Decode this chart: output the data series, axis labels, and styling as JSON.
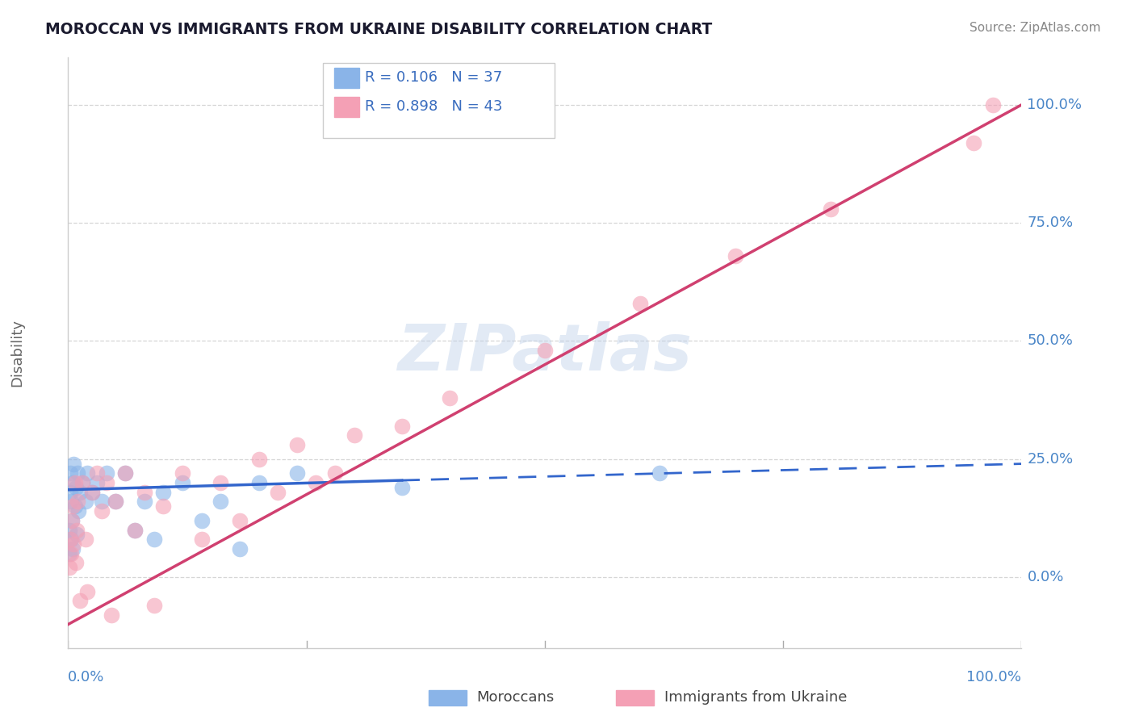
{
  "title": "MOROCCAN VS IMMIGRANTS FROM UKRAINE DISABILITY CORRELATION CHART",
  "source": "Source: ZipAtlas.com",
  "ylabel": "Disability",
  "watermark": "ZIPatlas",
  "legend_r1": "R = 0.106",
  "legend_n1": "N = 37",
  "legend_r2": "R = 0.898",
  "legend_n2": "N = 43",
  "ytick_labels": [
    "0.0%",
    "25.0%",
    "50.0%",
    "75.0%",
    "100.0%"
  ],
  "ytick_values": [
    0.0,
    25.0,
    50.0,
    75.0,
    100.0
  ],
  "xtick_positions": [
    0.0,
    25.0,
    50.0,
    75.0,
    100.0
  ],
  "xlim": [
    0.0,
    100.0
  ],
  "ylim": [
    -15.0,
    110.0
  ],
  "moroccan_color": "#8ab4e8",
  "ukraine_color": "#f4a0b5",
  "moroccan_line_color": "#3366cc",
  "ukraine_line_color": "#d04070",
  "moroccan_scatter_x": [
    0.1,
    0.15,
    0.2,
    0.25,
    0.3,
    0.35,
    0.4,
    0.5,
    0.5,
    0.6,
    0.7,
    0.8,
    0.9,
    1.0,
    1.1,
    1.2,
    1.5,
    1.8,
    2.0,
    2.5,
    3.0,
    3.5,
    4.0,
    5.0,
    6.0,
    7.0,
    8.0,
    9.0,
    10.0,
    12.0,
    14.0,
    16.0,
    18.0,
    20.0,
    24.0,
    35.0,
    62.0
  ],
  "moroccan_scatter_y": [
    5.0,
    10.0,
    18.0,
    22.0,
    16.0,
    8.0,
    12.0,
    20.0,
    6.0,
    24.0,
    15.0,
    19.0,
    9.0,
    22.0,
    14.0,
    18.0,
    20.0,
    16.0,
    22.0,
    18.0,
    20.0,
    16.0,
    22.0,
    16.0,
    22.0,
    10.0,
    16.0,
    8.0,
    18.0,
    20.0,
    12.0,
    16.0,
    6.0,
    20.0,
    22.0,
    19.0,
    22.0
  ],
  "ukraine_scatter_x": [
    0.1,
    0.2,
    0.3,
    0.4,
    0.5,
    0.6,
    0.7,
    0.8,
    0.9,
    1.0,
    1.2,
    1.5,
    1.8,
    2.0,
    2.5,
    3.0,
    3.5,
    4.0,
    4.5,
    5.0,
    6.0,
    7.0,
    8.0,
    9.0,
    10.0,
    12.0,
    14.0,
    16.0,
    18.0,
    20.0,
    22.0,
    24.0,
    26.0,
    28.0,
    30.0,
    35.0,
    40.0,
    50.0,
    60.0,
    70.0,
    80.0,
    95.0,
    97.0
  ],
  "ukraine_scatter_y": [
    2.0,
    8.0,
    5.0,
    12.0,
    15.0,
    7.0,
    20.0,
    3.0,
    10.0,
    16.0,
    -5.0,
    20.0,
    8.0,
    -3.0,
    18.0,
    22.0,
    14.0,
    20.0,
    -8.0,
    16.0,
    22.0,
    10.0,
    18.0,
    -6.0,
    15.0,
    22.0,
    8.0,
    20.0,
    12.0,
    25.0,
    18.0,
    28.0,
    20.0,
    22.0,
    30.0,
    32.0,
    38.0,
    48.0,
    58.0,
    68.0,
    78.0,
    92.0,
    100.0
  ],
  "moroccan_trend_x0": 0.0,
  "moroccan_trend_y0": 18.5,
  "moroccan_trend_x1": 35.0,
  "moroccan_trend_y1": 20.5,
  "moroccan_trend_x1_dash": 100.0,
  "moroccan_trend_y1_dash": 24.0,
  "ukraine_trend_x0": 0.0,
  "ukraine_trend_y0": -10.0,
  "ukraine_trend_x1": 100.0,
  "ukraine_trend_y1": 100.0,
  "background_color": "#ffffff",
  "grid_color": "#cccccc",
  "title_color": "#1a1a2e",
  "axis_label_color": "#4a86c8",
  "ylabel_color": "#666666",
  "legend_text_color": "#3a6dbf",
  "source_color": "#888888",
  "bottom_label_color": "#444444"
}
